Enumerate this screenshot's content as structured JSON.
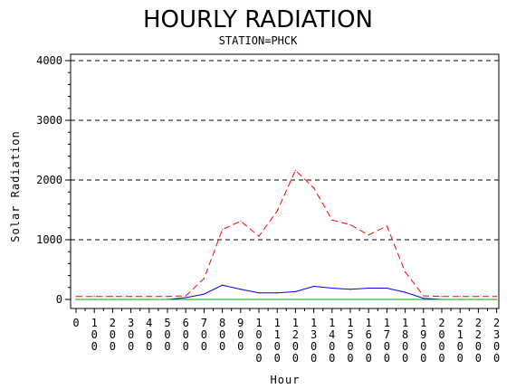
{
  "chart_data": {
    "type": "line",
    "title": "HOURLY RADIATION",
    "subtitle": "STATION=PHCK",
    "xlabel": "Hour",
    "ylabel": "Solar Radiation",
    "ylim": [
      0,
      4000
    ],
    "yticks": [
      0,
      1000,
      2000,
      3000,
      4000
    ],
    "ytick_labels": [
      "0",
      "1000",
      "2000",
      "3000",
      "4000"
    ],
    "grid": "horizontal dashed",
    "categories": [
      "0",
      "100",
      "200",
      "300",
      "400",
      "500",
      "600",
      "700",
      "800",
      "900",
      "1000",
      "1100",
      "1200",
      "1300",
      "1400",
      "1500",
      "1600",
      "1700",
      "1800",
      "1900",
      "2000",
      "2100",
      "2200",
      "2300"
    ],
    "series": [
      {
        "color": "#ff0000",
        "style": "dashed",
        "values": [
          50,
          50,
          50,
          50,
          50,
          50,
          60,
          350,
          1170,
          1310,
          1060,
          1480,
          2160,
          1870,
          1330,
          1250,
          1080,
          1230,
          460,
          60,
          50,
          50,
          50,
          50
        ]
      },
      {
        "color": "#0000ff",
        "style": "solid",
        "values": [
          0,
          0,
          0,
          0,
          0,
          0,
          30,
          90,
          240,
          170,
          110,
          110,
          130,
          220,
          190,
          170,
          190,
          190,
          120,
          20,
          0,
          0,
          0,
          0
        ]
      },
      {
        "color": "#00aa00",
        "style": "solid",
        "values": [
          0,
          0,
          0,
          0,
          0,
          0,
          0,
          0,
          0,
          0,
          0,
          0,
          0,
          0,
          0,
          0,
          0,
          0,
          0,
          0,
          0,
          0,
          0,
          0
        ]
      }
    ]
  }
}
